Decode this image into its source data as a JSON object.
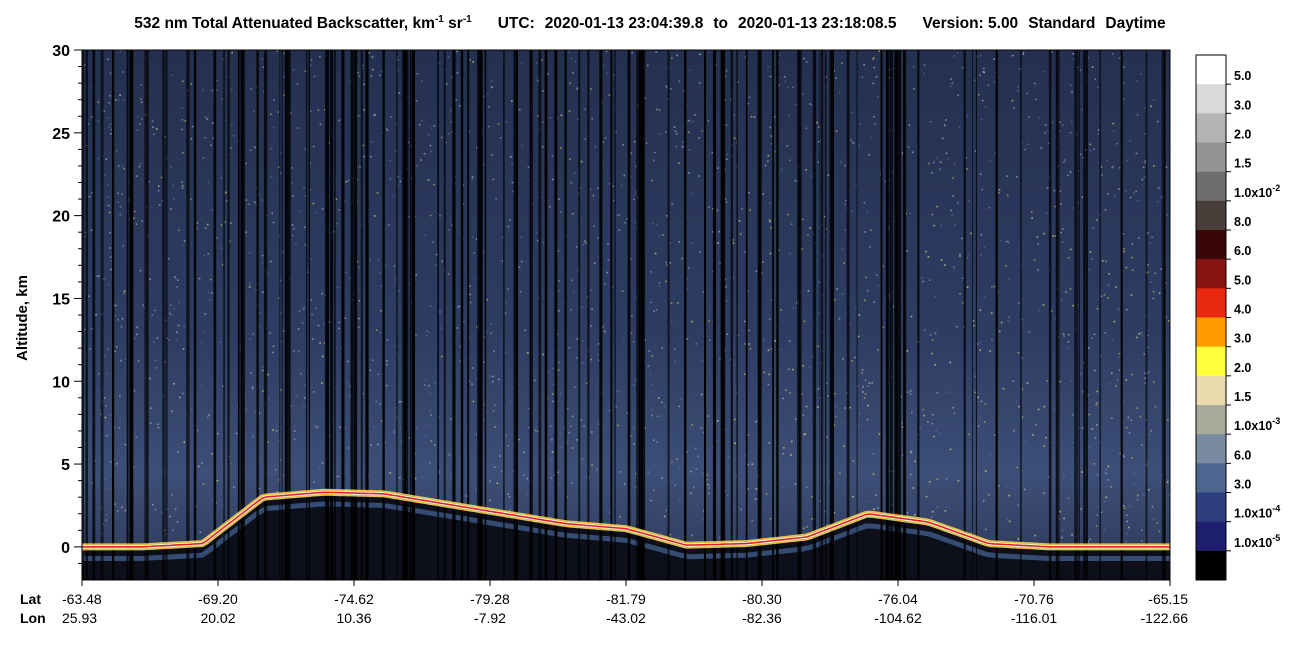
{
  "header": {
    "title_main": "532 nm Total Attenuated Backscatter, km",
    "title_sup1": "-1",
    "title_sr": " sr",
    "title_sup2": "-1",
    "utc_label": "UTC:",
    "utc_start": "2020-01-13 23:04:39.8",
    "to_label": "to",
    "utc_end": "2020-01-13 23:18:08.5",
    "version_label": "Version: 5.00",
    "product": "Standard",
    "daytime": "Daytime"
  },
  "chart_data": {
    "type": "heatmap",
    "ylabel": "Altitude, km",
    "ylim": [
      -2,
      30
    ],
    "y_ticks": [
      "30",
      "25",
      "20",
      "15",
      "10",
      "5",
      "0"
    ],
    "y_tick_values": [
      30,
      25,
      20,
      15,
      10,
      5,
      0
    ],
    "x_row_labels": [
      "Lat",
      "Lon"
    ],
    "x_ticks": [
      {
        "lat": "-63.48",
        "lon": "25.93"
      },
      {
        "lat": "-69.20",
        "lon": "20.02"
      },
      {
        "lat": "-74.62",
        "lon": "10.36"
      },
      {
        "lat": "-79.28",
        "lon": "-7.92"
      },
      {
        "lat": "-81.79",
        "lon": "-43.02"
      },
      {
        "lat": "-80.30",
        "lon": "-82.36"
      },
      {
        "lat": "-76.04",
        "lon": "-104.62"
      },
      {
        "lat": "-70.76",
        "lon": "-116.01"
      },
      {
        "lat": "-65.15",
        "lon": "-122.66"
      }
    ],
    "surface_altitude_km": [
      0.0,
      0.0,
      0.2,
      3.0,
      3.3,
      3.2,
      2.6,
      2.0,
      1.4,
      1.1,
      0.1,
      0.2,
      0.6,
      2.0,
      1.5,
      0.2,
      0.0,
      0.0,
      0.0
    ],
    "colorbar": {
      "labels": [
        {
          "base": "5.0",
          "exp": ""
        },
        {
          "base": "3.0",
          "exp": ""
        },
        {
          "base": "2.0",
          "exp": ""
        },
        {
          "base": "1.5",
          "exp": ""
        },
        {
          "base": "1.0x10",
          "exp": "-2"
        },
        {
          "base": "8.0",
          "exp": ""
        },
        {
          "base": "6.0",
          "exp": ""
        },
        {
          "base": "5.0",
          "exp": ""
        },
        {
          "base": "4.0",
          "exp": ""
        },
        {
          "base": "3.0",
          "exp": ""
        },
        {
          "base": "2.0",
          "exp": ""
        },
        {
          "base": "1.5",
          "exp": ""
        },
        {
          "base": "1.0x10",
          "exp": "-3"
        },
        {
          "base": "6.0",
          "exp": ""
        },
        {
          "base": "3.0",
          "exp": ""
        },
        {
          "base": "1.0x10",
          "exp": "-4"
        },
        {
          "base": "1.0x10",
          "exp": "-5"
        }
      ],
      "colors": [
        "#ffffff",
        "#d9d9d9",
        "#b4b4b4",
        "#949494",
        "#6e6e6e",
        "#4a3e3b",
        "#3a0606",
        "#8a1510",
        "#e8280f",
        "#ff9c00",
        "#ffff3c",
        "#ebdcae",
        "#aaaa9c",
        "#7a8aa0",
        "#4d6690",
        "#2d3f7e",
        "#1e1f6e",
        "#000000"
      ]
    }
  }
}
